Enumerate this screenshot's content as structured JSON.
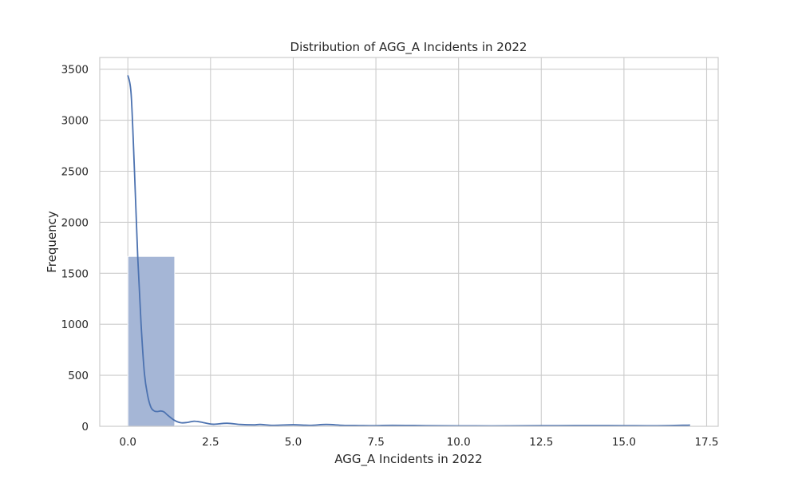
{
  "chart_data": {
    "type": "bar",
    "title": "Distribution of AGG_A Incidents in 2022",
    "xlabel": "AGG_A Incidents in 2022",
    "ylabel": "Frequency",
    "xlim": [
      -0.85,
      17.85
    ],
    "ylim": [
      0,
      3615
    ],
    "xticks": [
      0.0,
      2.5,
      5.0,
      7.5,
      10.0,
      12.5,
      15.0,
      17.5
    ],
    "xtick_labels": [
      "0.0",
      "2.5",
      "5.0",
      "7.5",
      "10.0",
      "12.5",
      "15.0",
      "17.5"
    ],
    "yticks": [
      0,
      500,
      1000,
      1500,
      2000,
      2500,
      3000,
      3500
    ],
    "ytick_labels": [
      "0",
      "500",
      "1000",
      "1500",
      "2000",
      "2500",
      "3000",
      "3500"
    ],
    "grid": true,
    "bins": [
      {
        "x0": 0.0,
        "x1": 1.4167,
        "count": 1665
      },
      {
        "x0": 1.4167,
        "x1": 2.8333,
        "count": 10
      },
      {
        "x0": 2.8333,
        "x1": 4.25,
        "count": 8
      },
      {
        "x0": 4.25,
        "x1": 5.6667,
        "count": 5
      },
      {
        "x0": 5.6667,
        "x1": 7.0833,
        "count": 6
      },
      {
        "x0": 7.0833,
        "x1": 8.5,
        "count": 3
      },
      {
        "x0": 8.5,
        "x1": 9.9167,
        "count": 3
      },
      {
        "x0": 9.9167,
        "x1": 11.3333,
        "count": 2
      },
      {
        "x0": 11.3333,
        "x1": 12.75,
        "count": 2
      },
      {
        "x0": 12.75,
        "x1": 14.1667,
        "count": 2
      },
      {
        "x0": 14.1667,
        "x1": 15.5833,
        "count": 3
      },
      {
        "x0": 15.5833,
        "x1": 17.0,
        "count": 4
      }
    ],
    "kde": {
      "x": [
        0.0,
        0.1,
        0.2,
        0.3,
        0.4,
        0.5,
        0.6,
        0.7,
        0.8,
        0.9,
        1.0,
        1.1,
        1.2,
        1.4,
        1.6,
        1.8,
        2.0,
        2.2,
        2.4,
        2.6,
        3.0,
        3.4,
        3.8,
        4.0,
        4.4,
        5.0,
        5.5,
        6.0,
        6.5,
        7.0,
        7.5,
        8.0,
        9.0,
        10.0,
        11.0,
        12.0,
        13.0,
        14.0,
        15.0,
        16.0,
        17.0
      ],
      "y": [
        3440,
        3250,
        2500,
        1650,
        1000,
        520,
        300,
        185,
        150,
        145,
        150,
        140,
        110,
        60,
        35,
        38,
        50,
        42,
        28,
        20,
        30,
        18,
        14,
        18,
        10,
        15,
        10,
        18,
        10,
        8,
        7,
        10,
        7,
        5,
        4,
        6,
        7,
        8,
        7,
        6,
        12
      ]
    },
    "colors": {
      "bar_fill": "#a5b6d6",
      "bar_edge": "#ffffff",
      "kde_line": "#4c72b0",
      "grid": "#cccccc",
      "frame": "#cccccc"
    }
  }
}
